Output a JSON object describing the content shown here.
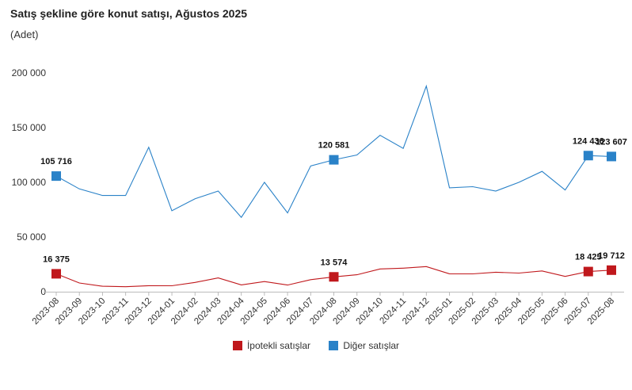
{
  "header": {
    "title": "Satış şekline göre konut satışı, Ağustos 2025",
    "subtitle": "(Adet)"
  },
  "legend": {
    "items": [
      {
        "label": "İpotekli satışlar",
        "color": "#c0181c"
      },
      {
        "label": "Diğer satışlar",
        "color": "#2a82c8"
      }
    ]
  },
  "chart_data": {
    "type": "line",
    "title": "Satış şekline göre konut satışı, Ağustos 2025",
    "ylabel": "(Adet)",
    "ylim": [
      0,
      200000
    ],
    "yticks": [
      0,
      50000,
      100000,
      150000,
      200000
    ],
    "ytick_labels": [
      "0",
      "50 000",
      "100 000",
      "150 000",
      "200 000"
    ],
    "grid": false,
    "legend_position": "bottom",
    "categories": [
      "2023-08",
      "2023-09",
      "2023-10",
      "2023-11",
      "2023-12",
      "2024-01",
      "2024-02",
      "2024-03",
      "2024-04",
      "2024-05",
      "2024-06",
      "2024-07",
      "2024-08",
      "2024-09",
      "2024-10",
      "2024-11",
      "2024-12",
      "2025-01",
      "2025-02",
      "2025-03",
      "2025-04",
      "2025-05",
      "2025-06",
      "2025-07",
      "2025-08"
    ],
    "series": [
      {
        "name": "İpotekli satışlar",
        "color": "#c0181c",
        "values": [
          16375,
          8000,
          5000,
          4600,
          5500,
          5400,
          8500,
          12600,
          6200,
          9300,
          6100,
          11000,
          13574,
          15500,
          20800,
          21500,
          23000,
          16400,
          16300,
          17800,
          17000,
          19000,
          14000,
          18425,
          19712
        ],
        "highlight_indices": [
          0,
          12,
          23,
          24
        ],
        "highlight_labels": [
          "16 375",
          "13 574",
          "18 425",
          "19 712"
        ]
      },
      {
        "name": "Diğer satışlar",
        "color": "#2a82c8",
        "values": [
          105716,
          94000,
          88000,
          88000,
          132000,
          74000,
          85000,
          92000,
          68000,
          100000,
          72000,
          115000,
          120581,
          125000,
          143000,
          131000,
          188000,
          95000,
          96000,
          92000,
          100000,
          110000,
          93000,
          124436,
          123607
        ],
        "highlight_indices": [
          0,
          12,
          23,
          24
        ],
        "highlight_labels": [
          "105 716",
          "120 581",
          "124 436",
          "123 607"
        ]
      }
    ]
  }
}
